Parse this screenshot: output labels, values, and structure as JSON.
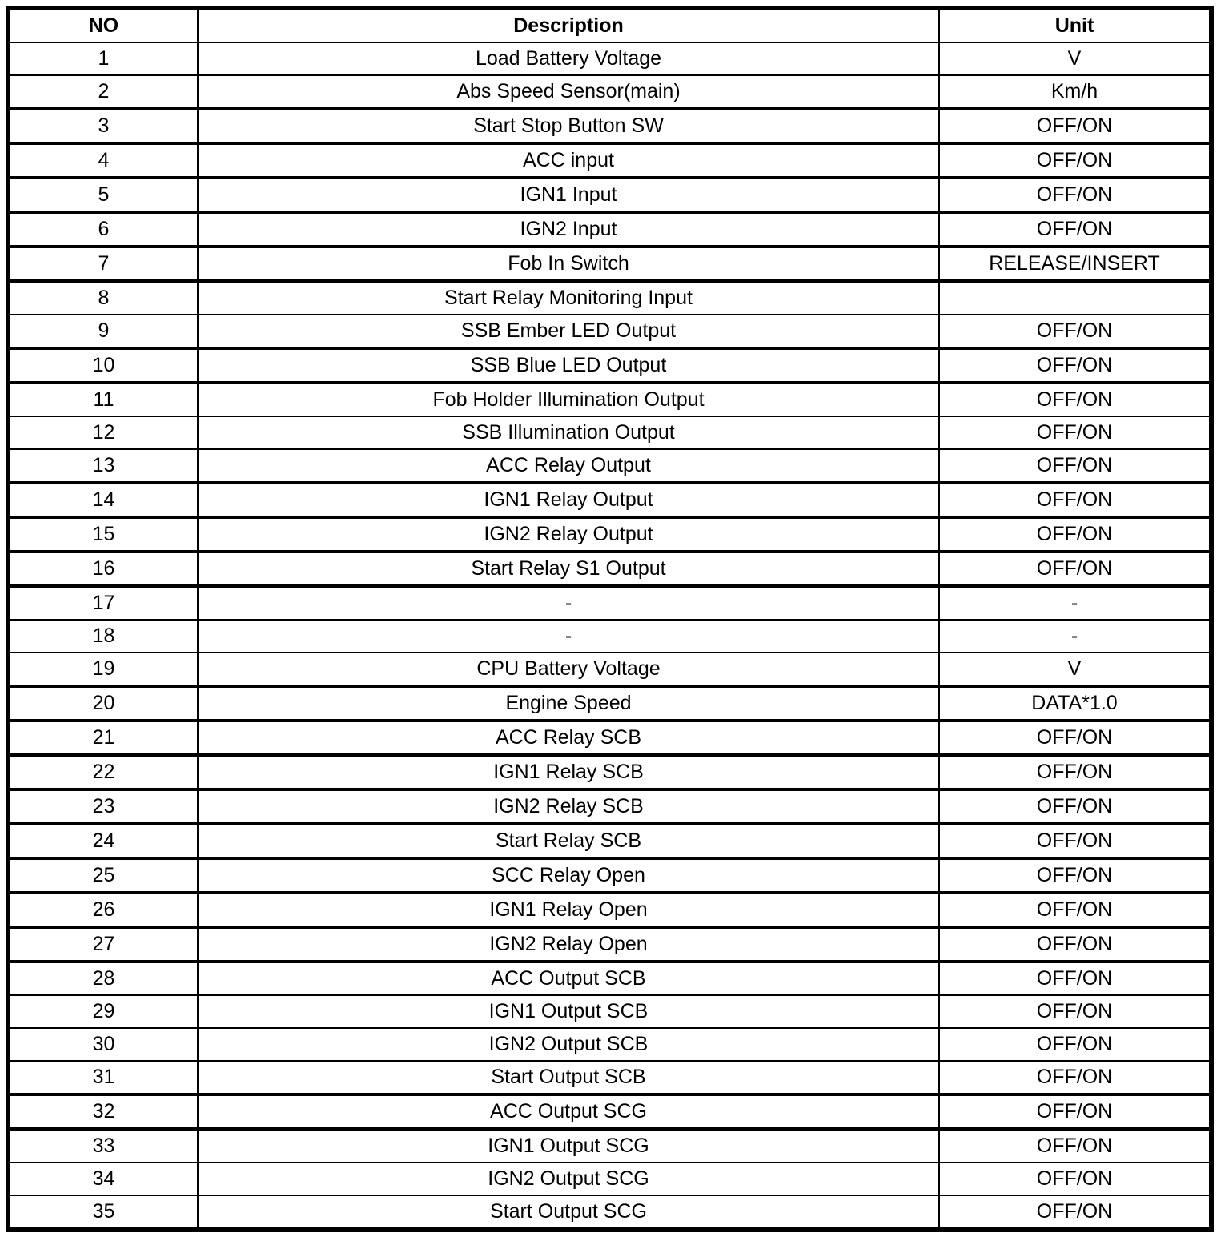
{
  "table": {
    "columns": [
      "NO",
      "Description",
      "Unit"
    ],
    "rows": [
      {
        "no": "1",
        "description": "Load Battery Voltage",
        "unit": "V"
      },
      {
        "no": "2",
        "description": "Abs Speed Sensor(main)",
        "unit": "Km/h"
      },
      {
        "no": "3",
        "description": "Start Stop Button SW",
        "unit": "OFF/ON"
      },
      {
        "no": "4",
        "description": "ACC input",
        "unit": "OFF/ON"
      },
      {
        "no": "5",
        "description": "IGN1 Input",
        "unit": "OFF/ON"
      },
      {
        "no": "6",
        "description": "IGN2 Input",
        "unit": "OFF/ON"
      },
      {
        "no": "7",
        "description": "Fob In Switch",
        "unit": "RELEASE/INSERT"
      },
      {
        "no": "8",
        "description": "Start Relay Monitoring Input",
        "unit": ""
      },
      {
        "no": "9",
        "description": "SSB Ember LED Output",
        "unit": "OFF/ON"
      },
      {
        "no": "10",
        "description": "SSB Blue LED Output",
        "unit": "OFF/ON"
      },
      {
        "no": "11",
        "description": "Fob Holder Illumination Output",
        "unit": "OFF/ON"
      },
      {
        "no": "12",
        "description": "SSB Illumination Output",
        "unit": "OFF/ON"
      },
      {
        "no": "13",
        "description": "ACC Relay Output",
        "unit": "OFF/ON"
      },
      {
        "no": "14",
        "description": "IGN1 Relay Output",
        "unit": "OFF/ON"
      },
      {
        "no": "15",
        "description": "IGN2 Relay Output",
        "unit": "OFF/ON"
      },
      {
        "no": "16",
        "description": "Start Relay S1 Output",
        "unit": "OFF/ON"
      },
      {
        "no": "17",
        "description": "-",
        "unit": "-"
      },
      {
        "no": "18",
        "description": "-",
        "unit": "-"
      },
      {
        "no": "19",
        "description": "CPU Battery Voltage",
        "unit": "V"
      },
      {
        "no": "20",
        "description": "Engine Speed",
        "unit": "DATA*1.0"
      },
      {
        "no": "21",
        "description": "ACC Relay SCB",
        "unit": "OFF/ON"
      },
      {
        "no": "22",
        "description": "IGN1 Relay SCB",
        "unit": "OFF/ON"
      },
      {
        "no": "23",
        "description": "IGN2 Relay SCB",
        "unit": "OFF/ON"
      },
      {
        "no": "24",
        "description": "Start Relay SCB",
        "unit": "OFF/ON"
      },
      {
        "no": "25",
        "description": "SCC Relay Open",
        "unit": "OFF/ON"
      },
      {
        "no": "26",
        "description": "IGN1 Relay Open",
        "unit": "OFF/ON"
      },
      {
        "no": "27",
        "description": "IGN2 Relay Open",
        "unit": "OFF/ON"
      },
      {
        "no": "28",
        "description": "ACC Output SCB",
        "unit": "OFF/ON"
      },
      {
        "no": "29",
        "description": "IGN1 Output SCB",
        "unit": "OFF/ON"
      },
      {
        "no": "30",
        "description": "IGN2 Output SCB",
        "unit": "OFF/ON"
      },
      {
        "no": "31",
        "description": "Start Output SCB",
        "unit": "OFF/ON"
      },
      {
        "no": "32",
        "description": "ACC Output SCG",
        "unit": "OFF/ON"
      },
      {
        "no": "33",
        "description": "IGN1 Output SCG",
        "unit": "OFF/ON"
      },
      {
        "no": "34",
        "description": "IGN2 Output SCG",
        "unit": "OFF/ON"
      },
      {
        "no": "35",
        "description": "Start Output SCG",
        "unit": "OFF/ON"
      }
    ]
  }
}
